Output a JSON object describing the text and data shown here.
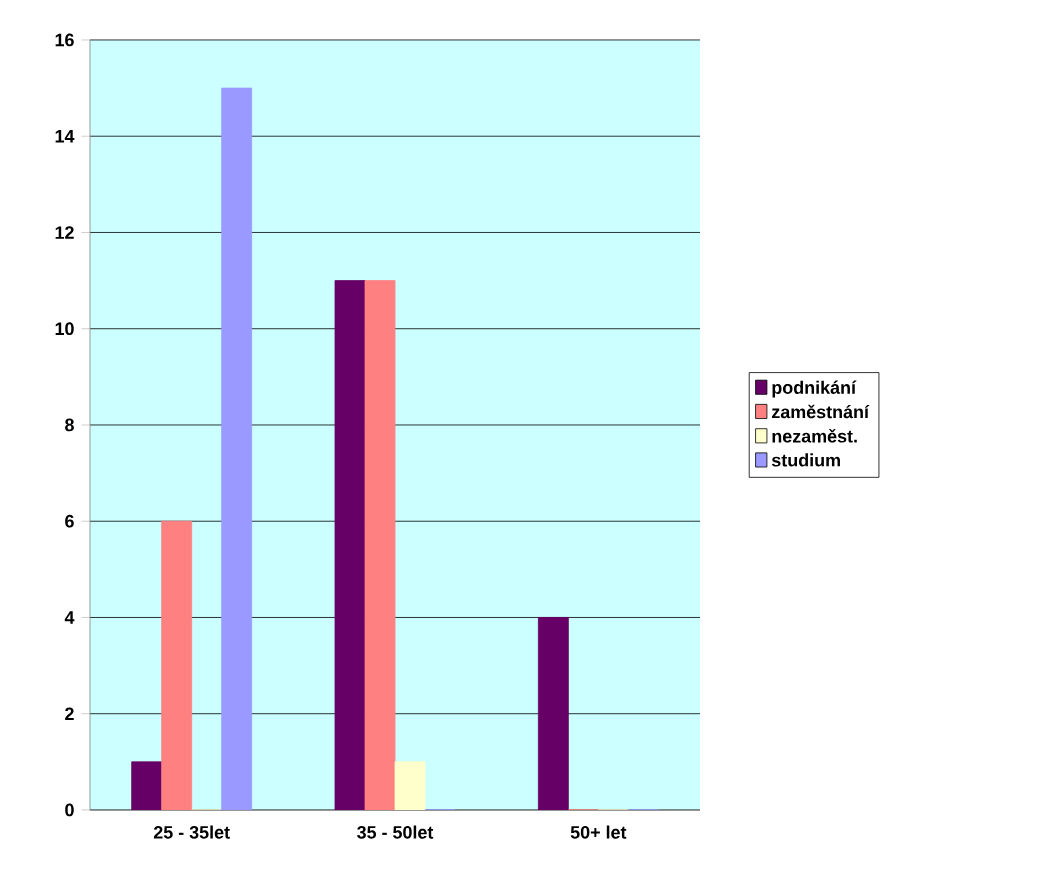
{
  "chart_data": {
    "type": "bar",
    "categories": [
      "25 - 35let",
      "35 - 50let",
      "50+ let"
    ],
    "series": [
      {
        "name": "podnikání",
        "color": "#660066",
        "values": [
          1,
          11,
          4
        ]
      },
      {
        "name": "zaměstnání",
        "color": "#ff8080",
        "values": [
          6,
          11,
          0
        ]
      },
      {
        "name": "nezaměst.",
        "color": "#ffffcc",
        "values": [
          0,
          1,
          0
        ]
      },
      {
        "name": "studium",
        "color": "#9999ff",
        "values": [
          15,
          0,
          0
        ]
      }
    ],
    "ylim": [
      0,
      16
    ],
    "yticks": [
      0,
      2,
      4,
      6,
      8,
      10,
      12,
      14,
      16
    ],
    "grid": "y",
    "legend": "right"
  }
}
